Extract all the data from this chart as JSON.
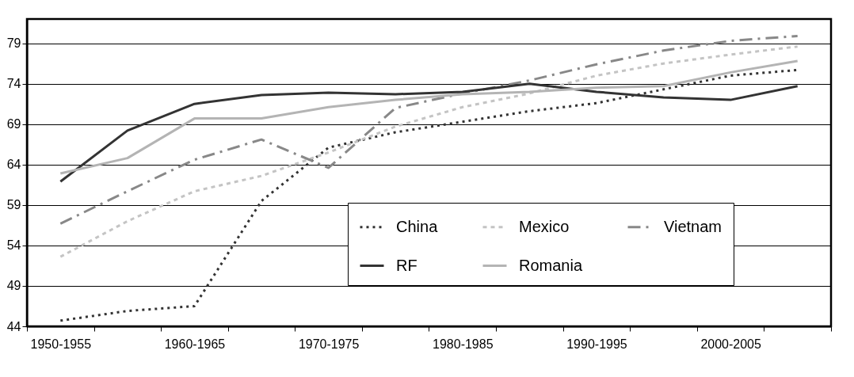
{
  "chart_data": {
    "type": "line",
    "categories": [
      "1950-1955",
      null,
      "1960-1965",
      null,
      "1970-1975",
      null,
      "1980-1985",
      null,
      "1990-1995",
      null,
      "2000-2005",
      null
    ],
    "series": [
      {
        "name": "China",
        "color": "#333333",
        "line_style": "dotted",
        "values": [
          44.7,
          45.9,
          46.5,
          59.5,
          66.1,
          68.0,
          69.3,
          70.6,
          71.6,
          73.3,
          75.0,
          75.7
        ]
      },
      {
        "name": "Mexico",
        "color": "#c4c4c4",
        "line_style": "dashed",
        "values": [
          52.6,
          57.0,
          60.7,
          62.6,
          65.5,
          68.7,
          71.1,
          72.8,
          75.0,
          76.5,
          77.6,
          78.6
        ]
      },
      {
        "name": "Vietnam",
        "color": "#888888",
        "line_style": "dashdot",
        "values": [
          56.7,
          60.7,
          64.6,
          67.1,
          63.6,
          71.0,
          72.8,
          74.4,
          76.4,
          78.1,
          79.3,
          79.9
        ]
      },
      {
        "name": "RF",
        "color": "#333333",
        "line_style": "solid",
        "values": [
          61.9,
          68.2,
          71.5,
          72.6,
          72.9,
          72.7,
          73.0,
          74.0,
          73.0,
          72.3,
          72.0,
          73.7
        ]
      },
      {
        "name": "Romania",
        "color": "#b4b4b4",
        "line_style": "solid",
        "values": [
          62.9,
          64.8,
          69.7,
          69.7,
          71.1,
          72.0,
          72.7,
          73.0,
          73.5,
          73.7,
          75.4,
          76.8
        ]
      }
    ],
    "ylim": [
      44,
      82
    ],
    "yticks": [
      44,
      49,
      54,
      59,
      64,
      69,
      74,
      79
    ],
    "grid": "y",
    "legend": "bottom right"
  }
}
